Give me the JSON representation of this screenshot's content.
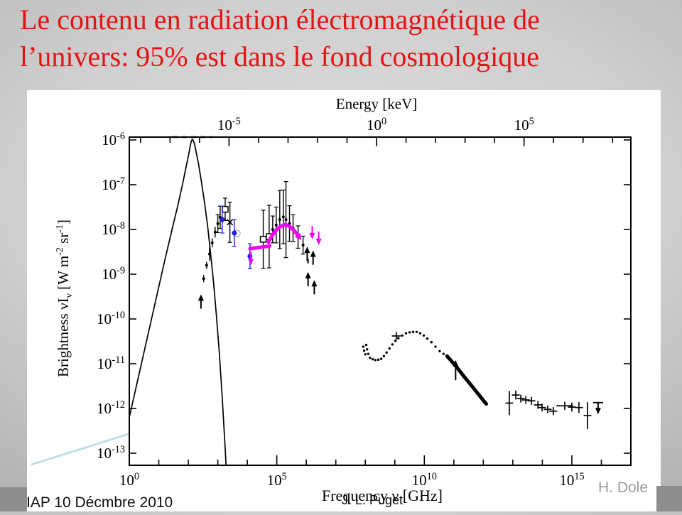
{
  "slide": {
    "title": {
      "line1": "Le contenu en radiation électromagnétique de",
      "line2": "l’univers: 95% est dans le fond cosmologique",
      "color": "#e41414"
    },
    "footer": {
      "left": "IAP 10 Décmbre 2010",
      "center": "J. L. Puget",
      "right": "H. Dole"
    },
    "accent_line_color": "#bcdfe4"
  },
  "chart_data": {
    "type": "scatter",
    "title": "",
    "description": "Spectrum of the electromagnetic background radiation of the universe: brightness vs frequency (CMB blackbody curve, CIB/COB points, X-ray and gamma-ray backgrounds)",
    "axes": {
      "top": {
        "label": "Energy [keV]",
        "tick_exponents": [
          -5,
          0,
          5
        ],
        "offset_decades_vs_bottom": 8.38
      },
      "bottom": {
        "label": "Frequency ν [GHz]",
        "tick_exponents": [
          0,
          5,
          10,
          15
        ],
        "range_log10": [
          0,
          17
        ]
      },
      "left": {
        "label_main": "Brightness νI",
        "label_sub": "ν",
        "label_u1": " [W m",
        "label_sup1": "-2",
        "label_u2": " sr",
        "label_sup2": "-1",
        "label_u3": "]",
        "tick_exponents": [
          -6,
          -7,
          -8,
          -9,
          -10,
          -11,
          -12,
          -13
        ],
        "range_log10": [
          -5.94,
          -13.27
        ]
      },
      "grid": false,
      "legend": "none"
    },
    "colors": {
      "black": "#000000",
      "magenta": "#f500f5",
      "blue": "#1f1fd9",
      "gray": "#bbbbbb"
    },
    "series": [
      {
        "id": "cmb-blackbody",
        "kind": "curve",
        "color": "#000000",
        "width": 1.7,
        "points": [
          [
            0,
            -12.2
          ],
          [
            0.3,
            -11.32
          ],
          [
            0.6,
            -10.45
          ],
          [
            0.9,
            -9.57
          ],
          [
            1.2,
            -8.7
          ],
          [
            1.45,
            -8.0
          ],
          [
            1.65,
            -7.45
          ],
          [
            1.8,
            -7.0
          ],
          [
            1.95,
            -6.52
          ],
          [
            2.02,
            -6.3
          ],
          [
            2.07,
            -6.12
          ],
          [
            2.1,
            -6.03
          ],
          [
            2.13,
            -5.99
          ],
          [
            2.16,
            -6.0
          ],
          [
            2.2,
            -6.07
          ],
          [
            2.26,
            -6.25
          ],
          [
            2.35,
            -6.55
          ],
          [
            2.45,
            -6.95
          ],
          [
            2.55,
            -7.4
          ],
          [
            2.65,
            -7.9
          ],
          [
            2.75,
            -8.5
          ],
          [
            2.85,
            -9.15
          ],
          [
            2.95,
            -9.9
          ],
          [
            3.05,
            -10.75
          ],
          [
            3.15,
            -11.75
          ],
          [
            3.25,
            -12.9
          ],
          [
            3.28,
            -13.26
          ]
        ]
      },
      {
        "id": "cmb-top-dashes",
        "kind": "top-dash",
        "color": "#000000",
        "from": 1.47,
        "to": 2.82
      },
      {
        "id": "firas-cib-dots",
        "kind": "dots",
        "color": "#000000",
        "r": 2,
        "points": [
          [
            2.52,
            -9.1,
            0.08
          ],
          [
            2.62,
            -8.8,
            0.08
          ],
          [
            2.72,
            -8.55,
            0.15
          ],
          [
            2.81,
            -8.3,
            0.1
          ],
          [
            2.91,
            -8.06,
            0.12
          ],
          [
            3.0,
            -7.87,
            0.2
          ],
          [
            3.08,
            -7.73,
            0.25
          ]
        ]
      },
      {
        "id": "uv-optical-dots",
        "kind": "dots",
        "color": "#000000",
        "r": 2,
        "points": [
          [
            4.86,
            -8.0,
            0.3
          ],
          [
            4.98,
            -7.9,
            0.4
          ],
          [
            5.1,
            -7.78,
            0.65
          ],
          [
            5.22,
            -7.72,
            0.6
          ],
          [
            5.31,
            -7.78,
            0.85
          ],
          [
            5.43,
            -7.87,
            0.4
          ],
          [
            5.55,
            -7.97,
            0.3
          ],
          [
            5.72,
            -8.17,
            0.25
          ],
          [
            5.89,
            -8.35,
            0.2
          ]
        ]
      },
      {
        "id": "open-squares",
        "kind": "osquares",
        "color": "#000000",
        "points": [
          [
            3.25,
            -7.55,
            0.25
          ],
          [
            4.54,
            -8.22,
            0.65
          ],
          [
            4.74,
            -8.16,
            0.7
          ]
        ]
      },
      {
        "id": "star-marker",
        "kind": "xmark",
        "color": "#000000",
        "points": [
          [
            3.41,
            -7.84,
            0.45
          ]
        ]
      },
      {
        "id": "gray-open-circle",
        "kind": "ocircle",
        "color": "#bbbbbb",
        "points": [
          [
            3.65,
            -8.09
          ]
        ]
      },
      {
        "id": "blue-points",
        "kind": "bdots",
        "color": "#1f1fd9",
        "r": 3.5,
        "points": [
          [
            3.15,
            -7.78,
            0.3
          ],
          [
            3.56,
            -8.08,
            0.3
          ],
          [
            4.09,
            -8.6,
            0.28
          ]
        ]
      },
      {
        "id": "magenta-bar",
        "kind": "thick",
        "color": "#f500f5",
        "width": 5,
        "points": [
          [
            4.09,
            -8.43
          ],
          [
            4.76,
            -8.37
          ]
        ]
      },
      {
        "id": "magenta-arc",
        "kind": "thick",
        "color": "#f500f5",
        "width": 5,
        "arrow_end": true,
        "points": [
          [
            4.71,
            -8.28
          ],
          [
            4.86,
            -8.12
          ],
          [
            5.0,
            -8.0
          ],
          [
            5.14,
            -7.93
          ],
          [
            5.29,
            -7.89
          ],
          [
            5.43,
            -7.93
          ],
          [
            5.58,
            -8.02
          ],
          [
            5.7,
            -8.12
          ]
        ]
      },
      {
        "id": "magenta-upper-limits",
        "kind": "downarrows",
        "color": "#f500f5",
        "len": 0.3,
        "points": [
          [
            4.12,
            -8.5
          ],
          [
            6.2,
            -7.92
          ],
          [
            6.42,
            -8.05
          ]
        ]
      },
      {
        "id": "black-lower-limits",
        "kind": "uparrows",
        "color": "#000000",
        "len": 0.32,
        "points": [
          [
            2.43,
            -9.45
          ],
          [
            6.03,
            -8.38
          ],
          [
            6.23,
            -8.47
          ],
          [
            6.06,
            -8.95
          ],
          [
            6.27,
            -9.13
          ]
        ]
      },
      {
        "id": "xray-lower-limit-arrow",
        "kind": "uparrows",
        "color": "#000000",
        "len": 0.45,
        "points": [
          [
            11.06,
            -10.92
          ]
        ]
      },
      {
        "id": "tiny-dash",
        "kind": "vdash",
        "color": "#000000",
        "points": [
          [
            6.06,
            -8.71
          ]
        ]
      },
      {
        "id": "xray-dot-chain",
        "kind": "dots",
        "color": "#000000",
        "r": 1.7,
        "points": [
          [
            7.93,
            -10.62,
            0
          ],
          [
            7.96,
            -10.71,
            0
          ],
          [
            8.0,
            -10.79,
            0
          ],
          [
            8.03,
            -10.58,
            0
          ],
          [
            8.06,
            -10.68,
            0
          ],
          [
            8.1,
            -10.78,
            0
          ],
          [
            8.16,
            -10.87,
            0
          ],
          [
            8.25,
            -10.9,
            0
          ],
          [
            8.34,
            -10.92,
            0
          ],
          [
            8.44,
            -10.91,
            0
          ],
          [
            8.54,
            -10.89,
            0
          ],
          [
            8.63,
            -10.83,
            0
          ],
          [
            8.72,
            -10.75,
            0
          ],
          [
            8.82,
            -10.66,
            0
          ],
          [
            8.92,
            -10.57,
            0
          ],
          [
            9.02,
            -10.49,
            0
          ],
          [
            9.12,
            -10.43,
            0
          ],
          [
            9.25,
            -10.37,
            0
          ],
          [
            9.38,
            -10.32,
            0
          ],
          [
            9.5,
            -10.3,
            0
          ],
          [
            9.62,
            -10.29,
            0
          ],
          [
            9.74,
            -10.29,
            0
          ],
          [
            9.86,
            -10.32,
            0
          ],
          [
            9.98,
            -10.37,
            0
          ],
          [
            10.1,
            -10.44,
            0
          ],
          [
            10.24,
            -10.52,
            0
          ],
          [
            10.38,
            -10.62,
            0
          ],
          [
            10.52,
            -10.72,
            0
          ],
          [
            10.65,
            -10.78,
            0
          ]
        ]
      },
      {
        "id": "xray-cross",
        "kind": "crosses",
        "color": "#000000",
        "points": [
          [
            9.05,
            -10.38,
            0.06,
            0.15
          ]
        ]
      },
      {
        "id": "xray-thick-streak",
        "kind": "thick",
        "color": "#000000",
        "width": 5,
        "points": [
          [
            10.77,
            -10.83
          ],
          [
            11.05,
            -11.04
          ],
          [
            11.35,
            -11.29
          ],
          [
            11.65,
            -11.53
          ],
          [
            11.95,
            -11.78
          ],
          [
            12.1,
            -11.9
          ]
        ]
      },
      {
        "id": "gamma-crosses",
        "kind": "crosses",
        "color": "#000000",
        "points": [
          [
            12.88,
            -11.88,
            0.27,
            0
          ],
          [
            13.1,
            -11.7,
            0.1,
            0
          ],
          [
            13.27,
            -11.78,
            0.07,
            0.1
          ],
          [
            13.44,
            -11.81,
            0.07,
            0
          ],
          [
            13.63,
            -11.83,
            0.07,
            0.12
          ],
          [
            13.85,
            -11.92,
            0.07,
            0
          ],
          [
            13.99,
            -11.98,
            0.07,
            0
          ],
          [
            14.18,
            -12.02,
            0.07,
            0
          ],
          [
            14.37,
            -12.06,
            0.09,
            0
          ],
          [
            14.76,
            -11.94,
            0.09,
            0.28
          ],
          [
            15.0,
            -11.97,
            0.1,
            0
          ],
          [
            15.24,
            -11.98,
            0.12,
            0.12
          ],
          [
            15.53,
            -12.16,
            0.3,
            0
          ]
        ]
      },
      {
        "id": "gamma-upper-limit",
        "kind": "downarrows",
        "color": "#000000",
        "len": 0.26,
        "cap": true,
        "points": [
          [
            15.89,
            -11.87
          ]
        ]
      }
    ]
  }
}
